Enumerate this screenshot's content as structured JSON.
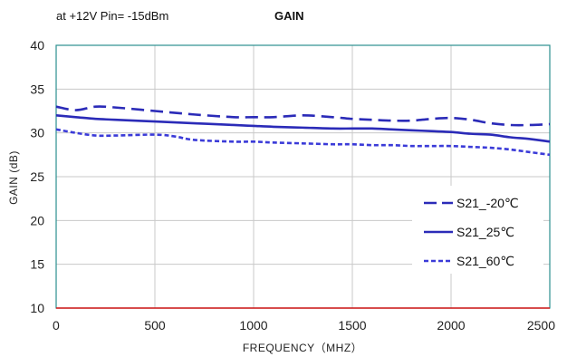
{
  "chart_data": {
    "type": "line",
    "title": "GAIN",
    "subtitle": "at +12V Pin= -15dBm",
    "xlabel": "FREQUENCY（MHZ）",
    "ylabel": "GAIN (dB)",
    "xlim": [
      0,
      2500
    ],
    "ylim": [
      10,
      40
    ],
    "xticks": [
      0,
      500,
      1000,
      1500,
      2000,
      2500
    ],
    "yticks": [
      10,
      15,
      20,
      25,
      30,
      35,
      40
    ],
    "grid": true,
    "legend_position": "bottom-right",
    "series": [
      {
        "name": "S21_-20℃",
        "style": "dashed",
        "color": "#2b2bb8",
        "x": [
          0,
          100,
          200,
          300,
          500,
          700,
          900,
          1000,
          1100,
          1250,
          1400,
          1500,
          1600,
          1700,
          1800,
          1900,
          2000,
          2100,
          2200,
          2300,
          2400,
          2500
        ],
        "y": [
          33.0,
          32.6,
          33.0,
          32.9,
          32.5,
          32.1,
          31.8,
          31.8,
          31.8,
          32.0,
          31.8,
          31.6,
          31.5,
          31.4,
          31.4,
          31.6,
          31.7,
          31.5,
          31.1,
          30.9,
          30.9,
          31.0
        ]
      },
      {
        "name": "S21_25℃",
        "style": "solid",
        "color": "#2b2bb8",
        "x": [
          0,
          100,
          200,
          300,
          500,
          700,
          900,
          1000,
          1100,
          1250,
          1400,
          1500,
          1600,
          1700,
          1800,
          1900,
          2000,
          2100,
          2200,
          2300,
          2400,
          2500
        ],
        "y": [
          32.0,
          31.8,
          31.6,
          31.5,
          31.3,
          31.1,
          30.9,
          30.8,
          30.7,
          30.6,
          30.5,
          30.5,
          30.5,
          30.4,
          30.3,
          30.2,
          30.1,
          29.9,
          29.8,
          29.5,
          29.3,
          29.0
        ]
      },
      {
        "name": "S21_60℃",
        "style": "dotted",
        "color": "#3b3bd8",
        "x": [
          0,
          100,
          200,
          300,
          500,
          600,
          700,
          900,
          1000,
          1100,
          1250,
          1400,
          1500,
          1600,
          1700,
          1800,
          1900,
          2000,
          2100,
          2200,
          2300,
          2400,
          2500
        ],
        "y": [
          30.4,
          30.0,
          29.7,
          29.7,
          29.8,
          29.6,
          29.2,
          29.0,
          29.0,
          28.9,
          28.8,
          28.7,
          28.7,
          28.6,
          28.6,
          28.5,
          28.5,
          28.5,
          28.4,
          28.3,
          28.1,
          27.8,
          27.5
        ]
      }
    ]
  }
}
